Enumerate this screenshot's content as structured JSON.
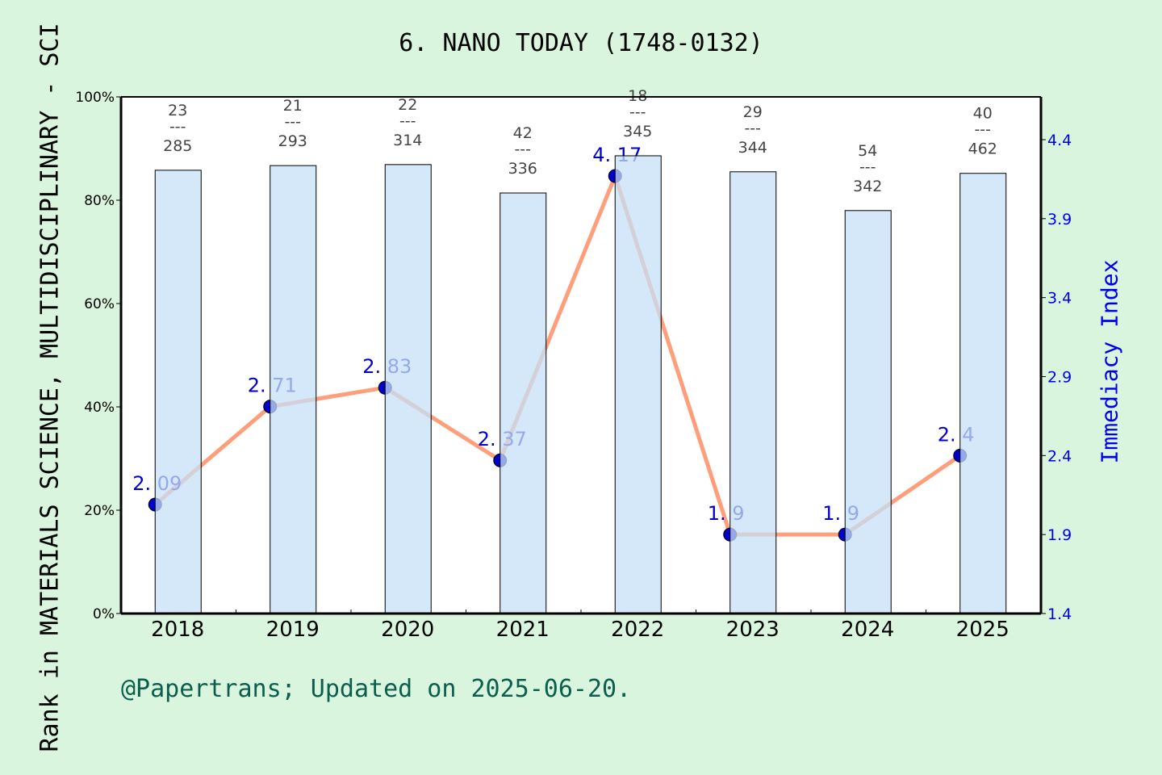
{
  "chart_data": {
    "type": "bar+line",
    "title": "6. NANO TODAY (1748-0132)",
    "ylabel": "Rank in MATERIALS SCIENCE, MULTIDISCIPLINARY - SCI",
    "y2label": "Immediacy Index",
    "footer": "@Papertrans; Updated on 2025-06-20.",
    "categories": [
      "2018",
      "2019",
      "2020",
      "2021",
      "2022",
      "2023",
      "2024",
      "2025"
    ],
    "ylim": [
      0,
      100
    ],
    "yticks": [
      "0%",
      "20%",
      "40%",
      "60%",
      "80%",
      "100%"
    ],
    "y2lim": [
      1.4,
      4.65
    ],
    "y2ticks": [
      "1.4",
      "1.9",
      "2.4",
      "2.9",
      "3.4",
      "3.9",
      "4.4"
    ],
    "bar_values_percent": [
      85.8,
      86.7,
      86.9,
      81.4,
      88.6,
      85.5,
      78.0,
      85.2
    ],
    "ranks": [
      "23",
      "21",
      "22",
      "42",
      "18",
      "29",
      "54",
      "40"
    ],
    "totals": [
      "285",
      "293",
      "314",
      "336",
      "345",
      "344",
      "342",
      "462"
    ],
    "immediacy_index": [
      2.09,
      2.71,
      2.83,
      2.37,
      4.17,
      1.9,
      1.9,
      2.4
    ],
    "immediacy_labels": [
      [
        "2.",
        "09"
      ],
      [
        "2.",
        "71"
      ],
      [
        "2.",
        "83"
      ],
      [
        "2.",
        "37"
      ],
      [
        "4.",
        "17"
      ],
      [
        "1.",
        "9"
      ],
      [
        "1.",
        "9"
      ],
      [
        "2.",
        "4"
      ]
    ],
    "colors": {
      "bar": "#c5e0f7",
      "line": "#ff9e7a",
      "point": "#0000cc",
      "axis2": "#0000ee"
    }
  }
}
